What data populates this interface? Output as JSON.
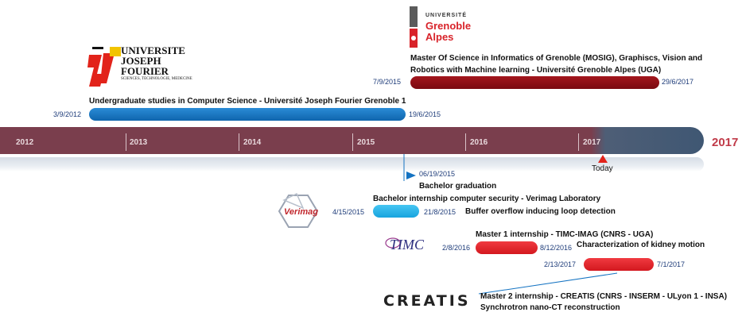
{
  "timeline": {
    "years": [
      "2012",
      "2013",
      "2014",
      "2015",
      "2016",
      "2017"
    ],
    "end_year": "2017",
    "today_label": "Today"
  },
  "logos": {
    "ujf": {
      "line1": "UNIVERSITE",
      "line2": "JOSEPH FOURIER",
      "line3": "SCIENCES, TECHNOLOGIE, MEDECINE"
    },
    "uga": {
      "line1": "UNIVERSITÉ",
      "line2": "Grenoble",
      "line3": "Alpes"
    },
    "verimag": "Verimag",
    "timc": "TIMC",
    "creatis": "CREATIS"
  },
  "events": {
    "undergrad": {
      "label": "Undergraduate studies in Computer Science - Université Joseph Fourier Grenoble 1",
      "start": "3/9/2012",
      "end": "19/6/2015",
      "color": "#1473c2"
    },
    "master": {
      "label_line1": "Master Of Science in Informatics of Grenoble (MOSIG), Graphiscs, Vision and",
      "label_line2": "Robotics with Machine learning - Université Grenoble Alpes (UGA)",
      "start": "7/9/2015",
      "end": "29/6/2017",
      "color": "#8c0e15"
    },
    "bachelor_grad": {
      "date": "06/19/2015",
      "label": "Bachelor graduation"
    },
    "bachelor_internship": {
      "label": "Bachelor internship computer security - Verimag Laboratory",
      "sub": "Buffer overflow inducing loop detection",
      "start": "4/15/2015",
      "end": "21/8/2015",
      "color": "#27b4ea"
    },
    "master1_internship": {
      "label": "Master 1 internship - TIMC-IMAG (CNRS - UGA)",
      "sub": "Characterization of kidney motion",
      "start": "2/8/2016",
      "end": "8/12/2016",
      "color": "#e21f26"
    },
    "master2_internship": {
      "label": "Master 2 internship - CREATIS (CNRS - INSERM - ULyon 1 - INSA)",
      "sub": "Synchrotron nano-CT reconstruction",
      "start": "2/13/2017",
      "end": "7/1/2017",
      "color": "#e21f26"
    }
  }
}
